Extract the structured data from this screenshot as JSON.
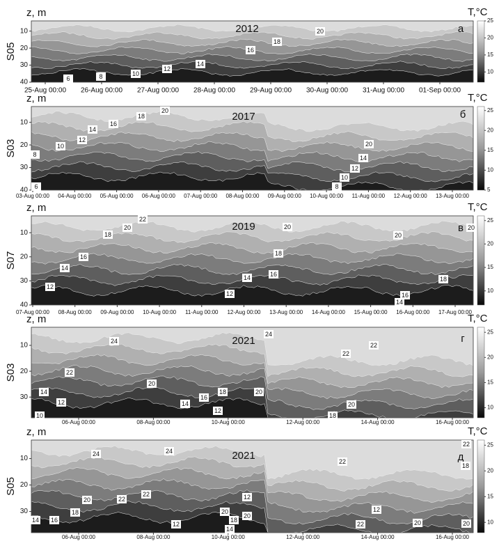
{
  "chart_data": [
    {
      "type": "contour",
      "title": "2012",
      "panel_label": "а",
      "station": "S05",
      "y_label": "z, m",
      "colorbar_label": "T,°C",
      "categories": [
        "25-Aug 00:00",
        "26-Aug 00:00",
        "27-Aug 00:00",
        "28-Aug 00:00",
        "29-Aug 00:00",
        "30-Aug 00:00",
        "31-Aug 00:00",
        "01-Sep 00:00"
      ],
      "ylim": [
        4,
        40
      ],
      "y_inverted": true,
      "yticks": [
        10,
        20,
        30,
        40
      ],
      "zlim": [
        7,
        25
      ],
      "zticks": [
        10,
        15,
        20,
        25
      ],
      "contour_labels": [
        6,
        8,
        10,
        12,
        14,
        16,
        18,
        20
      ]
    },
    {
      "type": "contour",
      "title": "2017",
      "panel_label": "б",
      "station": "S03",
      "y_label": "z, m",
      "colorbar_label": "T,°C",
      "categories": [
        "03-Aug 00:00",
        "04-Aug 00:00",
        "05-Aug 00:00",
        "06-Aug 00:00",
        "07-Aug 00:00",
        "08-Aug 00:00",
        "09-Aug 00:00",
        "10-Aug 00:00",
        "11-Aug 00:00",
        "12-Aug 00:00",
        "13-Aug 00:00"
      ],
      "ylim": [
        3,
        40
      ],
      "y_inverted": true,
      "yticks": [
        10,
        20,
        30,
        40
      ],
      "zlim": [
        5,
        26
      ],
      "zticks": [
        5,
        10,
        15,
        20,
        25
      ],
      "contour_labels": [
        6,
        8,
        10,
        12,
        14,
        16,
        18,
        20,
        20,
        14,
        12,
        10,
        8
      ]
    },
    {
      "type": "contour",
      "title": "2019",
      "panel_label": "в",
      "station": "S07",
      "y_label": "z, m",
      "colorbar_label": "T,°C",
      "categories": [
        "07-Aug 00:00",
        "08-Aug 00:00",
        "09-Aug 00:00",
        "10-Aug 00:00",
        "11-Aug 00:00",
        "12-Aug 00:00",
        "13-Aug 00:00",
        "14-Aug 00:00",
        "15-Aug 00:00",
        "16-Aug 00:00",
        "17-Aug 00:00"
      ],
      "ylim": [
        3,
        40
      ],
      "y_inverted": true,
      "yticks": [
        10,
        20,
        30,
        40
      ],
      "zlim": [
        7,
        26
      ],
      "zticks": [
        10,
        15,
        20,
        25
      ],
      "contour_labels": [
        22,
        20,
        18,
        16,
        14,
        12,
        20,
        18,
        16,
        14,
        12,
        20,
        18,
        16,
        14,
        20
      ]
    },
    {
      "type": "contour",
      "title": "2021",
      "panel_label": "г",
      "station": "S03",
      "y_label": "z, m",
      "colorbar_label": "T,°C",
      "categories": [
        "06-Aug 00:00",
        "08-Aug 00:00",
        "10-Aug 00:00",
        "12-Aug 00:00",
        "14-Aug 00:00",
        "16-Aug 00:00"
      ],
      "ylim": [
        3,
        38
      ],
      "y_inverted": true,
      "yticks": [
        10,
        20,
        30
      ],
      "zlim": [
        8,
        26
      ],
      "zticks": [
        10,
        15,
        20,
        25
      ],
      "contour_labels": [
        24,
        24,
        22,
        22,
        22,
        20,
        20,
        14,
        12,
        10,
        14,
        16,
        18,
        12,
        18,
        20
      ]
    },
    {
      "type": "contour",
      "title": "2021",
      "panel_label": "д",
      "station": "S05",
      "y_label": "z, m",
      "colorbar_label": "T,°C",
      "categories": [
        "06-Aug 00:00",
        "08-Aug 00:00",
        "10-Aug 00:00",
        "12-Aug 00:00",
        "14-Aug 00:00",
        "16-Aug 00:00"
      ],
      "ylim": [
        3,
        38
      ],
      "y_inverted": true,
      "yticks": [
        10,
        20,
        30
      ],
      "zlim": [
        8,
        26
      ],
      "zticks": [
        10,
        15,
        20,
        25
      ],
      "contour_labels": [
        24,
        24,
        22,
        22,
        22,
        22,
        20,
        18,
        16,
        14,
        12,
        12,
        20,
        20,
        18,
        14,
        12,
        22,
        20,
        20,
        18
      ]
    }
  ]
}
